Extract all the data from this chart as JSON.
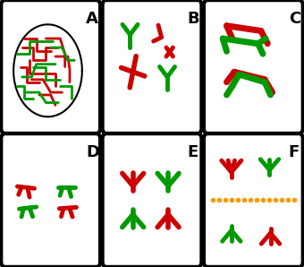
{
  "background": "#ffffff",
  "border_color": "#111111",
  "red": "#cc0000",
  "green": "#009900",
  "orange": "#ff9900",
  "labels": [
    "A",
    "B",
    "C",
    "D",
    "E",
    "F"
  ],
  "label_fontsize": 13,
  "label_fontweight": "bold"
}
